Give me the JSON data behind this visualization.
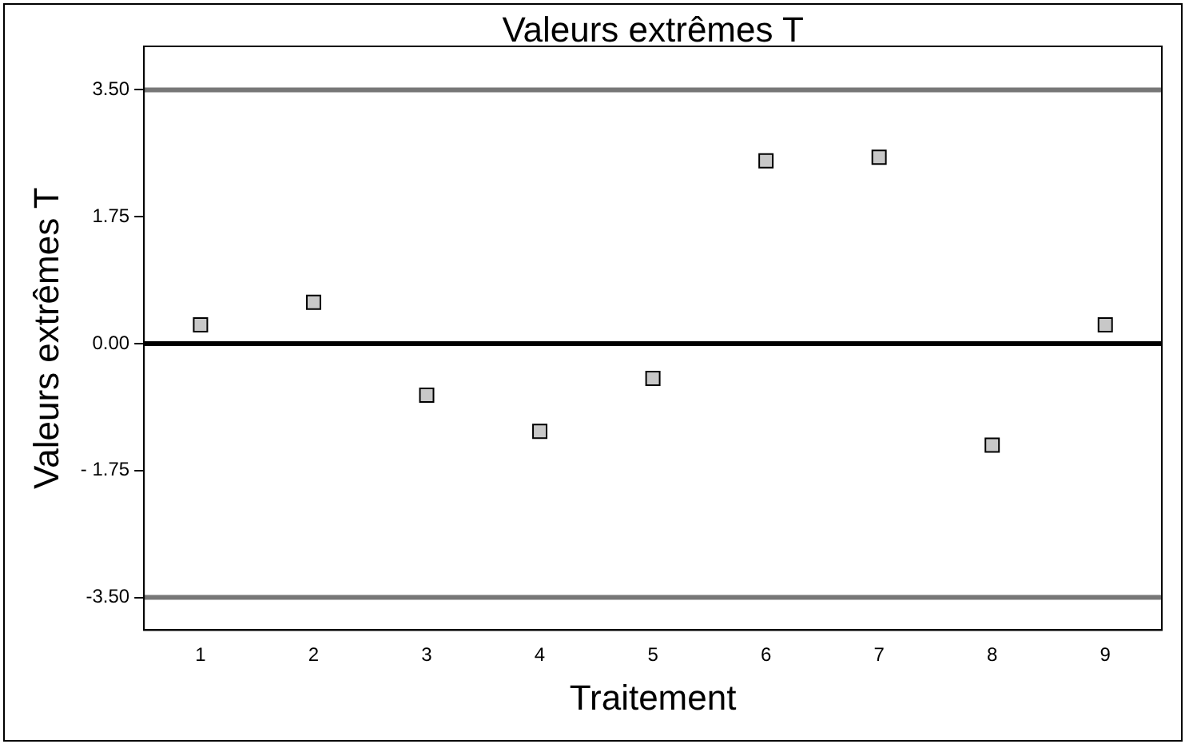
{
  "chart_data": {
    "type": "scatter",
    "title": "Valeurs extrêmes T",
    "xlabel": "Traitement",
    "ylabel": "Valeurs extrêmes T",
    "categories": [
      "1",
      "2",
      "3",
      "4",
      "5",
      "6",
      "7",
      "8",
      "9"
    ],
    "series": [
      {
        "color": "#c8c8c8",
        "values": [
          0.26,
          0.57,
          -0.71,
          -1.21,
          -0.48,
          2.52,
          2.57,
          -1.4,
          0.26
        ]
      }
    ],
    "ylim": [
      -3.95,
      4.1
    ],
    "yticks": [
      {
        "value": 3.5,
        "label": "3.50"
      },
      {
        "value": 1.75,
        "label": "1.75"
      },
      {
        "value": 0,
        "label": "0.00"
      },
      {
        "value": -1.75,
        "label": "- 1.75"
      },
      {
        "value": -3.5,
        "label": "-3.50"
      }
    ],
    "ref_lines": [
      {
        "axis": "y",
        "value": 3.5,
        "color": "#777777"
      },
      {
        "axis": "y",
        "value": 0,
        "color": "#000000"
      },
      {
        "axis": "y",
        "value": -3.5,
        "color": "#777777"
      }
    ],
    "marker": "square",
    "grid": false,
    "legend": false
  }
}
